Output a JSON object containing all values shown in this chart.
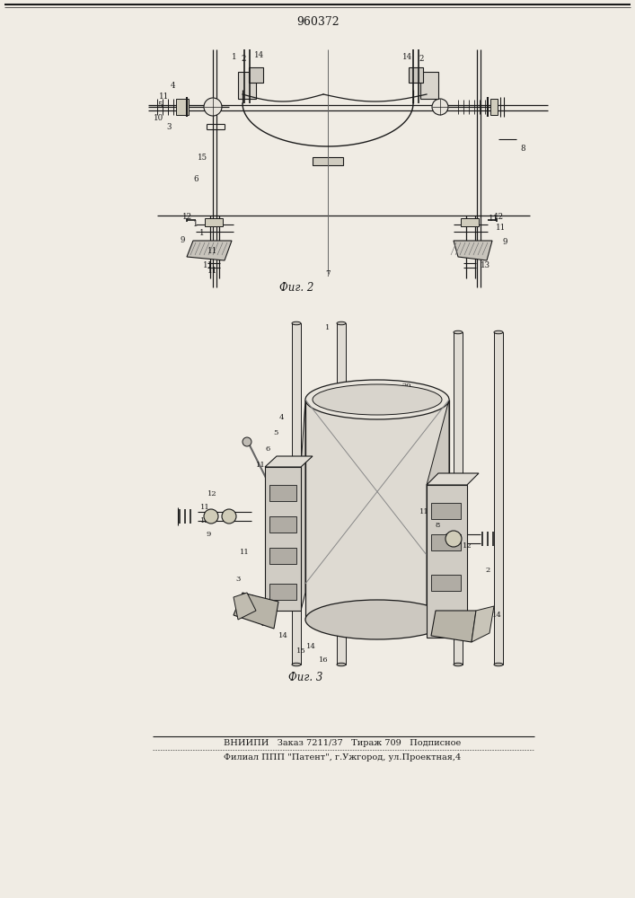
{
  "patent_number": "960372",
  "fig2_label": "Фиг. 2",
  "fig3_label": "Фиг. 3",
  "bottom_line1": "ВНИИПИ   Заказ 7211/37   Тираж 709   Подписное",
  "bottom_line2": "Филиал ППП \"Патент\", г.Ужгород, ул.Проектная,4",
  "bg_color": "#f0ece4",
  "line_color": "#1a1a1a",
  "text_color": "#1a1a1a"
}
